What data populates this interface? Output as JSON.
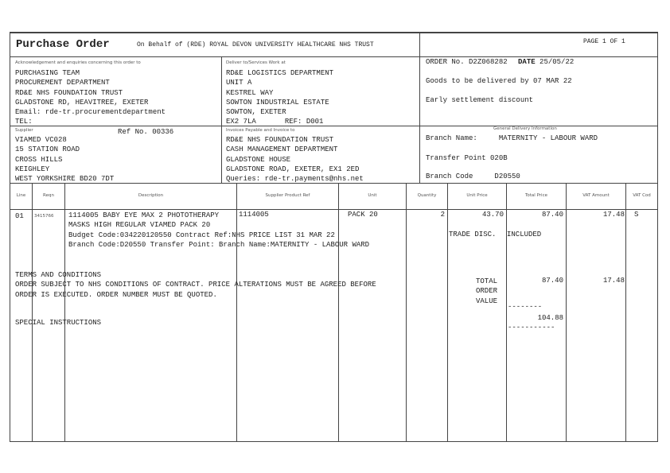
{
  "header": {
    "title": "Purchase Order",
    "on_behalf": "On Behalf of (RDE) ROYAL DEVON UNIVERSITY HEALTHCARE NHS TRUST",
    "page": "PAGE 1  OF 1"
  },
  "ack": {
    "label": "Acknowledgement and enquiries concerning this order to",
    "lines": [
      "PURCHASING TEAM",
      "PROCUREMENT DEPARTMENT",
      "RD&E NHS FOUNDATION TRUST",
      "GLADSTONE RD, HEAVITREE, EXETER",
      "Email: rde-tr.procurementdepartment",
      "TEL:"
    ]
  },
  "deliver": {
    "label": "Deliver to/Services Work at",
    "lines": [
      "RD&E LOGISTICS DEPARTMENT",
      "UNIT A",
      "KESTREL WAY",
      "SOWTON INDUSTRIAL ESTATE",
      "SOWTON, EXETER"
    ],
    "postcode": "EX2 7LA",
    "ref": "REF: D001"
  },
  "order": {
    "order_no_label": "ORDER No.",
    "order_no": "D2Z068282",
    "date_label": "DATE",
    "date": "25/05/22",
    "goods_by": "Goods to be delivered by 07 MAR 22",
    "early": "Early settlement discount"
  },
  "supplier": {
    "label": "Supplier",
    "ref": "Ref No. 00336",
    "lines": [
      "VIAMED VC028",
      "15 STATION ROAD",
      "CROSS HILLS",
      "KEIGHLEY",
      "WEST YORKSHIRE BD20 7DT"
    ]
  },
  "invoice": {
    "label": "Invoices Payable and Invoice to",
    "lines": [
      "RD&E NHS FOUNDATION TRUST",
      "CASH MANAGEMENT DEPARTMENT",
      "GLADSTONE HOUSE",
      "GLADSTONE ROAD, EXETER, EX1 2ED",
      "Queries: rde-tr.payments@nhs.net"
    ]
  },
  "delivery_info": {
    "label": "General Delivery Information",
    "branch_name": "Branch Name:     MATERNITY - LABOUR WARD",
    "transfer": "Transfer Point 020B",
    "branch_code": "Branch Code     D20550"
  },
  "table": {
    "headers": [
      "Line",
      "Reqn",
      "Description",
      "Supplier Product Ref",
      "Unit",
      "Quantity",
      "Unit Price",
      "Total Price",
      "VAT Amount",
      "VAT Cod"
    ],
    "row": {
      "line": "01",
      "reqn": "3415766",
      "desc": [
        "1114005 BABY EYE MAX 2 PHOTOTHERAPY",
        "MASKS HIGH REGULAR VIAMED PACK 20",
        "Budget Code:034220120550  Contract Ref:NHS PRICE LIST 31 MAR 22",
        "Branch Code:D20550  Transfer Point:  Branch Name:MATERNITY - LABOUR WARD"
      ],
      "ref": "1114005",
      "unit": "PACK 20",
      "qty": "2",
      "price": "43.70",
      "total": "87.40",
      "vat": "17.48",
      "code": "S",
      "trade": "TRADE DISC.",
      "included": "INCLUDED"
    }
  },
  "terms": {
    "title": "TERMS AND CONDITIONS",
    "lines": [
      "ORDER SUBJECT TO NHS CONDITIONS OF CONTRACT. PRICE ALTERATIONS MUST BE AGREED BEFORE",
      "ORDER IS EXECUTED. ORDER NUMBER MUST BE QUOTED."
    ]
  },
  "totals": {
    "label": [
      "TOTAL",
      "ORDER",
      "VALUE"
    ],
    "net": "87.40",
    "vat": "17.48",
    "dash": "--------",
    "grand": "104.88",
    "dash2": "-----------"
  },
  "special": "SPECIAL INSTRUCTIONS"
}
